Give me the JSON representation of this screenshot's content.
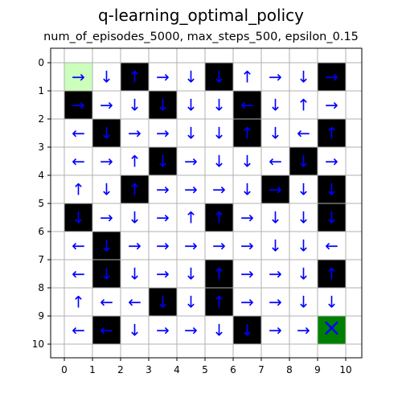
{
  "chart_data": {
    "type": "heatmap",
    "title": "q-learning_optimal_policy",
    "subtitle": "num_of_episodes_5000, max_steps_500, epsilon_0.15",
    "x_ticks": [
      "0",
      "1",
      "2",
      "3",
      "4",
      "5",
      "6",
      "7",
      "8",
      "9",
      "10"
    ],
    "y_ticks": [
      "0",
      "1",
      "2",
      "3",
      "4",
      "5",
      "6",
      "7",
      "8",
      "9",
      "10"
    ],
    "grid": true,
    "colors": {
      "start": "#ccffbb",
      "obstacle": "#000000",
      "goal": "#008000",
      "arrow": "#0000ff",
      "grid": "#b0b0b0",
      "open": "#ffffff"
    },
    "cell_types_legend": {
      "O": "open",
      "W": "obstacle",
      "S": "start",
      "G": "goal"
    },
    "cells": [
      [
        "S",
        "O",
        "W",
        "O",
        "O",
        "W",
        "O",
        "O",
        "O",
        "W"
      ],
      [
        "W",
        "O",
        "O",
        "W",
        "O",
        "O",
        "W",
        "O",
        "O",
        "O"
      ],
      [
        "O",
        "W",
        "O",
        "O",
        "O",
        "O",
        "W",
        "O",
        "O",
        "W"
      ],
      [
        "O",
        "O",
        "O",
        "W",
        "O",
        "O",
        "O",
        "O",
        "W",
        "O"
      ],
      [
        "O",
        "O",
        "W",
        "O",
        "O",
        "O",
        "O",
        "W",
        "O",
        "W"
      ],
      [
        "W",
        "O",
        "O",
        "O",
        "O",
        "W",
        "O",
        "O",
        "O",
        "W"
      ],
      [
        "O",
        "W",
        "O",
        "O",
        "O",
        "O",
        "O",
        "O",
        "O",
        "O"
      ],
      [
        "O",
        "W",
        "O",
        "O",
        "O",
        "W",
        "O",
        "O",
        "O",
        "W"
      ],
      [
        "O",
        "O",
        "O",
        "W",
        "O",
        "W",
        "O",
        "O",
        "O",
        "O"
      ],
      [
        "O",
        "W",
        "O",
        "O",
        "O",
        "O",
        "W",
        "O",
        "O",
        "G"
      ]
    ],
    "policy": [
      [
        "→",
        "↓",
        "↑",
        "→",
        "↓",
        "↓",
        "↑",
        "→",
        "↓",
        "→"
      ],
      [
        "→",
        "→",
        "↓",
        "↓",
        "↓",
        "↓",
        "←",
        "↓",
        "↑",
        "→"
      ],
      [
        "←",
        "↓",
        "→",
        "→",
        "↓",
        "↓",
        "↑",
        "↓",
        "←",
        "↑"
      ],
      [
        "←",
        "→",
        "↑",
        "↓",
        "→",
        "↓",
        "↓",
        "←",
        "↓",
        "→"
      ],
      [
        "↑",
        "↓",
        "↑",
        "→",
        "→",
        "→",
        "↓",
        "→",
        "↓",
        "↓"
      ],
      [
        "↓",
        "→",
        "↓",
        "→",
        "↑",
        "↑",
        "→",
        "↓",
        "↓",
        "↓"
      ],
      [
        "←",
        "↓",
        "→",
        "→",
        "→",
        "→",
        "→",
        "↓",
        "↓",
        "←"
      ],
      [
        "←",
        "↓",
        "↓",
        "→",
        "↓",
        "↑",
        "→",
        "→",
        "↓",
        "↑"
      ],
      [
        "↑",
        "←",
        "←",
        "↓",
        "↓",
        "↑",
        "→",
        "→",
        "↓",
        "↓"
      ],
      [
        "←",
        "←",
        "↓",
        "→",
        "→",
        "↓",
        "↓",
        "→",
        "→",
        "×"
      ]
    ]
  }
}
